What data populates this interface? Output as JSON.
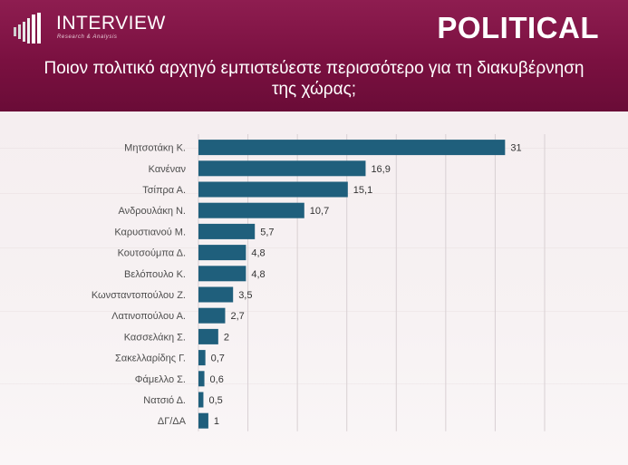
{
  "header": {
    "brand": "INTERVIEW",
    "tagline": "Research & Analysis",
    "political": "POLITICAL",
    "question": "Ποιον πολιτικό αρχηγό εμπιστεύεστε περισσότερο για τη διακυβέρνηση της χώρας;"
  },
  "colors": {
    "header": "#7a1040",
    "bar": "#1f5f7c",
    "grid": "#d8d0d3"
  },
  "chart_data": {
    "type": "bar",
    "orientation": "horizontal",
    "categories": [
      "Μητσοτάκη Κ.",
      "Κανέναν",
      "Τσίπρα Α.",
      "Ανδρουλάκη Ν.",
      "Καρυστιανού Μ.",
      "Κουτσούμπα Δ.",
      "Βελόπουλο Κ.",
      "Κωνσταντοπούλου Ζ.",
      "Λατινοπούλου Α.",
      "Κασσελάκη Σ.",
      "Σακελλαρίδης Γ.",
      "Φάμελλο Σ.",
      "Νατσιό Δ.",
      "ΔΓ/ΔΑ"
    ],
    "values": [
      31,
      16.9,
      15.1,
      10.7,
      5.7,
      4.8,
      4.8,
      3.5,
      2.7,
      2,
      0.7,
      0.6,
      0.5,
      1
    ],
    "value_labels": [
      "31",
      "16,9",
      "15,1",
      "10,7",
      "5,7",
      "4,8",
      "4,8",
      "3,5",
      "2,7",
      "2",
      "0,7",
      "0,6",
      "0,5",
      "1"
    ],
    "xlim": [
      0,
      35
    ],
    "grid": true,
    "legend": "none",
    "title": "",
    "xlabel": "",
    "ylabel": ""
  }
}
